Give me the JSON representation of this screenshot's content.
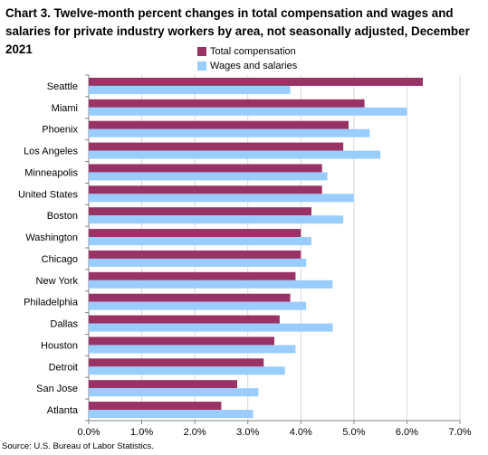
{
  "chart_data": {
    "type": "bar",
    "orientation": "horizontal",
    "title": "Chart 3. Twelve-month percent changes in total compensation and wages and salaries for private industry workers by area, not seasonally adjusted, December 2021",
    "categories": [
      "Seattle",
      "Miami",
      "Phoenix",
      "Los Angeles",
      "Minneapolis",
      "United States",
      "Boston",
      "Washington",
      "Chicago",
      "New York",
      "Philadelphia",
      "Dallas",
      "Houston",
      "Detroit",
      "San Jose",
      "Atlanta"
    ],
    "series": [
      {
        "name": "Total compensation",
        "color": "#993366",
        "values": [
          6.3,
          5.2,
          4.9,
          4.8,
          4.4,
          4.4,
          4.2,
          4.0,
          4.0,
          3.9,
          3.8,
          3.6,
          3.5,
          3.3,
          2.8,
          2.5
        ]
      },
      {
        "name": "Wages and salaries",
        "color": "#99ccff",
        "values": [
          3.8,
          6.0,
          5.3,
          5.5,
          4.5,
          5.0,
          4.8,
          4.2,
          4.1,
          4.6,
          4.1,
          4.6,
          3.9,
          3.7,
          3.2,
          3.1
        ]
      }
    ],
    "xlim": [
      0,
      7
    ],
    "xticks": [
      "0.0%",
      "1.0%",
      "2.0%",
      "3.0%",
      "4.0%",
      "5.0%",
      "6.0%",
      "7.0%"
    ],
    "grid": true,
    "legend_position": "top"
  },
  "source": "Source: U.S. Bureau of Labor Statistics."
}
